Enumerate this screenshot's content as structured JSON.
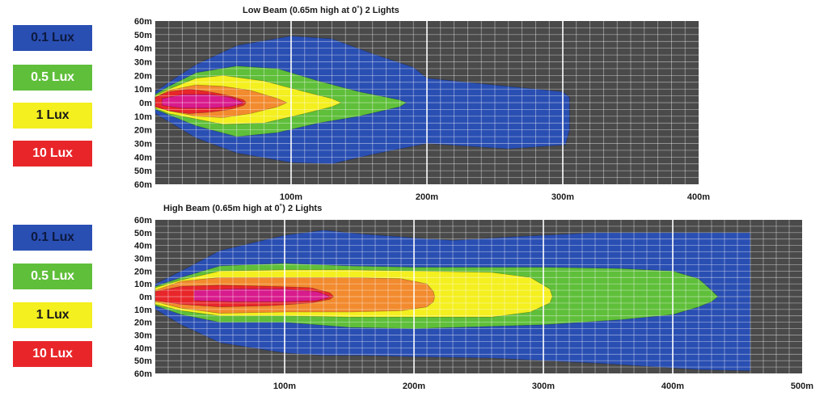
{
  "legend_colors": {
    "lux_0_1": "#2a4fb3",
    "lux_0_5": "#5fbf3a",
    "lux_1": "#f4ef1f",
    "lux_5": "#f28a2e",
    "lux_10": "#e8262a",
    "core": "#d81b8c"
  },
  "chart_data": [
    {
      "type": "area",
      "title": "Low Beam (0.65m high at 0˚) 2 Lights",
      "xlabel": "",
      "ylabel": "",
      "x_ticks": [
        "100m",
        "200m",
        "300m",
        "400m"
      ],
      "y_ticks": [
        "60m",
        "50m",
        "40m",
        "30m",
        "20m",
        "10m",
        "0m",
        "10m",
        "20m",
        "30m",
        "40m",
        "50m",
        "60m"
      ],
      "xlim": [
        0,
        400
      ],
      "ylim": [
        -60,
        60
      ],
      "grid": true,
      "legend": [
        "0.1 Lux",
        "0.5 Lux",
        "1 Lux",
        "10 Lux"
      ],
      "legend_placement": "left",
      "series": [
        {
          "name": "0.1 Lux",
          "upper": [
            [
              0,
              8
            ],
            [
              10,
              15
            ],
            [
              30,
              28
            ],
            [
              60,
              42
            ],
            [
              100,
              49
            ],
            [
              130,
              47
            ],
            [
              160,
              36
            ],
            [
              190,
              26
            ],
            [
              200,
              18
            ],
            [
              260,
              12
            ],
            [
              300,
              8
            ],
            [
              305,
              4
            ]
          ],
          "lower": [
            [
              0,
              -8
            ],
            [
              10,
              -14
            ],
            [
              30,
              -26
            ],
            [
              60,
              -37
            ],
            [
              100,
              -44
            ],
            [
              130,
              -45
            ],
            [
              160,
              -38
            ],
            [
              190,
              -32
            ],
            [
              200,
              -30
            ],
            [
              260,
              -34
            ],
            [
              302,
              -31
            ],
            [
              305,
              -20
            ],
            [
              305,
              -4
            ]
          ]
        },
        {
          "name": "0.5 Lux",
          "upper": [
            [
              0,
              6
            ],
            [
              10,
              12
            ],
            [
              30,
              22
            ],
            [
              60,
              27
            ],
            [
              90,
              25
            ],
            [
              120,
              16
            ],
            [
              150,
              8
            ],
            [
              180,
              2
            ],
            [
              185,
              0
            ]
          ],
          "lower": [
            [
              0,
              -5
            ],
            [
              10,
              -9
            ],
            [
              30,
              -17
            ],
            [
              60,
              -25
            ],
            [
              90,
              -22
            ],
            [
              120,
              -15
            ],
            [
              150,
              -10
            ],
            [
              180,
              -3
            ],
            [
              185,
              0
            ]
          ]
        },
        {
          "name": "1 Lux",
          "upper": [
            [
              0,
              5
            ],
            [
              10,
              10
            ],
            [
              30,
              18
            ],
            [
              50,
              20
            ],
            [
              80,
              16
            ],
            [
              110,
              8
            ],
            [
              130,
              3
            ],
            [
              137,
              0
            ]
          ],
          "lower": [
            [
              0,
              -4
            ],
            [
              10,
              -8
            ],
            [
              30,
              -12
            ],
            [
              50,
              -16
            ],
            [
              80,
              -15
            ],
            [
              110,
              -8
            ],
            [
              130,
              -3
            ],
            [
              137,
              0
            ]
          ]
        },
        {
          "name": "5 Lux",
          "upper": [
            [
              0,
              4
            ],
            [
              10,
              9
            ],
            [
              30,
              13
            ],
            [
              50,
              12
            ],
            [
              70,
              9
            ],
            [
              90,
              3
            ],
            [
              97,
              0
            ]
          ],
          "lower": [
            [
              0,
              -3
            ],
            [
              10,
              -6
            ],
            [
              30,
              -10
            ],
            [
              50,
              -11
            ],
            [
              70,
              -8
            ],
            [
              90,
              -3
            ],
            [
              97,
              0
            ]
          ]
        },
        {
          "name": "10 Lux",
          "upper": [
            [
              0,
              4
            ],
            [
              10,
              8
            ],
            [
              25,
              10
            ],
            [
              40,
              8
            ],
            [
              55,
              5
            ],
            [
              65,
              2
            ],
            [
              67,
              0
            ]
          ],
          "lower": [
            [
              0,
              -3
            ],
            [
              10,
              -6
            ],
            [
              25,
              -8
            ],
            [
              40,
              -7
            ],
            [
              55,
              -5
            ],
            [
              65,
              -2
            ],
            [
              67,
              0
            ]
          ]
        },
        {
          "name": "core",
          "upper": [
            [
              5,
              3
            ],
            [
              20,
              6
            ],
            [
              40,
              6
            ],
            [
              55,
              4
            ],
            [
              63,
              1
            ],
            [
              65,
              0
            ]
          ],
          "lower": [
            [
              5,
              -2
            ],
            [
              20,
              -4
            ],
            [
              40,
              -4
            ],
            [
              55,
              -3
            ],
            [
              63,
              -1
            ],
            [
              65,
              0
            ]
          ]
        }
      ]
    },
    {
      "type": "area",
      "title": "High Beam (0.65m high at 0˚) 2 Lights",
      "xlabel": "",
      "ylabel": "",
      "x_ticks": [
        "100m",
        "200m",
        "300m",
        "400m",
        "500m"
      ],
      "y_ticks": [
        "60m",
        "50m",
        "40m",
        "30m",
        "20m",
        "10m",
        "0m",
        "10m",
        "20m",
        "30m",
        "40m",
        "50m",
        "60m"
      ],
      "xlim": [
        0,
        500
      ],
      "ylim": [
        -60,
        60
      ],
      "grid": true,
      "legend": [
        "0.1 Lux",
        "0.5 Lux",
        "1 Lux",
        "10 Lux"
      ],
      "legend_placement": "left",
      "series": [
        {
          "name": "0.1 Lux",
          "upper": [
            [
              0,
              10
            ],
            [
              20,
              20
            ],
            [
              50,
              36
            ],
            [
              100,
              48
            ],
            [
              130,
              52
            ],
            [
              160,
              49
            ],
            [
              200,
              46
            ],
            [
              230,
              44
            ],
            [
              280,
              47
            ],
            [
              340,
              50
            ],
            [
              460,
              50
            ],
            [
              460,
              10
            ]
          ],
          "lower": [
            [
              0,
              -10
            ],
            [
              20,
              -22
            ],
            [
              50,
              -36
            ],
            [
              100,
              -44
            ],
            [
              130,
              -46
            ],
            [
              160,
              -46
            ],
            [
              200,
              -47
            ],
            [
              260,
              -48
            ],
            [
              340,
              -52
            ],
            [
              420,
              -57
            ],
            [
              460,
              -58
            ],
            [
              460,
              -10
            ]
          ]
        },
        {
          "name": "0.5 Lux",
          "upper": [
            [
              0,
              8
            ],
            [
              20,
              15
            ],
            [
              50,
              24
            ],
            [
              100,
              26
            ],
            [
              150,
              24
            ],
            [
              200,
              23
            ],
            [
              300,
              23
            ],
            [
              360,
              22
            ],
            [
              400,
              20
            ],
            [
              420,
              14
            ],
            [
              430,
              5
            ],
            [
              435,
              0
            ]
          ],
          "lower": [
            [
              0,
              -7
            ],
            [
              20,
              -14
            ],
            [
              50,
              -20
            ],
            [
              100,
              -20
            ],
            [
              150,
              -24
            ],
            [
              200,
              -25
            ],
            [
              300,
              -22
            ],
            [
              360,
              -18
            ],
            [
              400,
              -14
            ],
            [
              420,
              -8
            ],
            [
              430,
              -4
            ],
            [
              435,
              0
            ]
          ]
        },
        {
          "name": "1 Lux",
          "upper": [
            [
              0,
              7
            ],
            [
              20,
              13
            ],
            [
              50,
              20
            ],
            [
              100,
              21
            ],
            [
              150,
              21
            ],
            [
              200,
              20
            ],
            [
              260,
              19
            ],
            [
              290,
              15
            ],
            [
              305,
              6
            ],
            [
              307,
              0
            ]
          ],
          "lower": [
            [
              0,
              -6
            ],
            [
              20,
              -11
            ],
            [
              50,
              -15
            ],
            [
              100,
              -15
            ],
            [
              150,
              -16
            ],
            [
              200,
              -16
            ],
            [
              260,
              -16
            ],
            [
              290,
              -12
            ],
            [
              305,
              -5
            ],
            [
              307,
              0
            ]
          ]
        },
        {
          "name": "5 Lux",
          "upper": [
            [
              0,
              5
            ],
            [
              20,
              12
            ],
            [
              50,
              15
            ],
            [
              100,
              15
            ],
            [
              150,
              15
            ],
            [
              190,
              14
            ],
            [
              210,
              10
            ],
            [
              215,
              4
            ],
            [
              216,
              0
            ]
          ],
          "lower": [
            [
              0,
              -4
            ],
            [
              20,
              -9
            ],
            [
              50,
              -13
            ],
            [
              100,
              -12
            ],
            [
              150,
              -12
            ],
            [
              190,
              -11
            ],
            [
              210,
              -8
            ],
            [
              215,
              -4
            ],
            [
              216,
              0
            ]
          ]
        },
        {
          "name": "10 Lux",
          "upper": [
            [
              0,
              4
            ],
            [
              20,
              8
            ],
            [
              50,
              9
            ],
            [
              90,
              8
            ],
            [
              120,
              7
            ],
            [
              135,
              3
            ],
            [
              138,
              0
            ]
          ],
          "lower": [
            [
              0,
              -3
            ],
            [
              20,
              -6
            ],
            [
              50,
              -8
            ],
            [
              90,
              -7
            ],
            [
              120,
              -5
            ],
            [
              135,
              -2
            ],
            [
              138,
              0
            ]
          ]
        },
        {
          "name": "core",
          "upper": [
            [
              30,
              5
            ],
            [
              60,
              6
            ],
            [
              100,
              6
            ],
            [
              125,
              4
            ],
            [
              133,
              1
            ],
            [
              135,
              0
            ]
          ],
          "lower": [
            [
              30,
              -3
            ],
            [
              60,
              -4
            ],
            [
              100,
              -4
            ],
            [
              125,
              -3
            ],
            [
              133,
              -1
            ],
            [
              135,
              0
            ]
          ]
        }
      ]
    }
  ],
  "legends": [
    [
      {
        "label": "0.1 Lux",
        "color_key": "lux_0_1",
        "text_color": "#0d1a40"
      },
      {
        "label": "0.5 Lux",
        "color_key": "lux_0_5",
        "text_color": "#ffffff"
      },
      {
        "label": "1 Lux",
        "color_key": "lux_1",
        "text_color": "#1a1a1a"
      },
      {
        "label": "10 Lux",
        "color_key": "lux_10",
        "text_color": "#ffffff"
      }
    ],
    [
      {
        "label": "0.1 Lux",
        "color_key": "lux_0_1",
        "text_color": "#0d1a40"
      },
      {
        "label": "0.5 Lux",
        "color_key": "lux_0_5",
        "text_color": "#ffffff"
      },
      {
        "label": "1 Lux",
        "color_key": "lux_1",
        "text_color": "#1a1a1a"
      },
      {
        "label": "10 Lux",
        "color_key": "lux_10",
        "text_color": "#ffffff"
      }
    ]
  ]
}
